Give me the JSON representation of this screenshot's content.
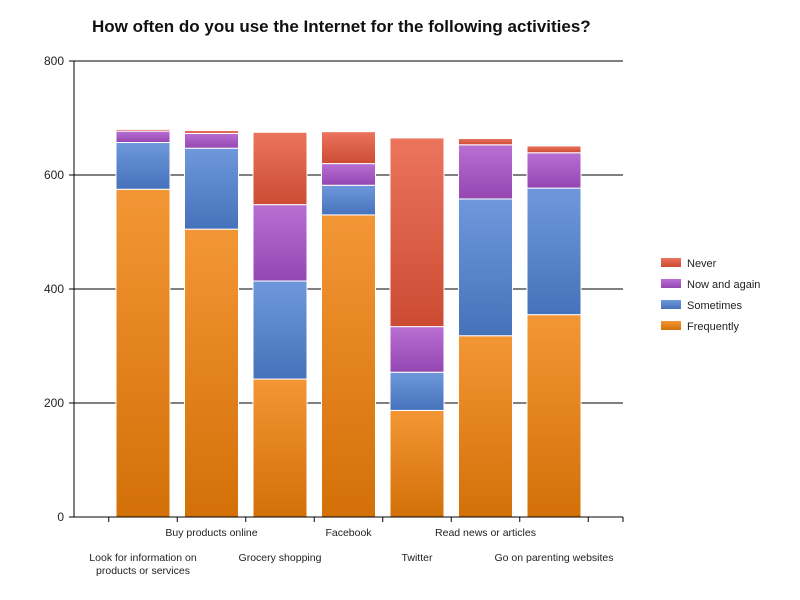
{
  "chart_data": {
    "type": "stacked-bar",
    "title": "How often do you use the Internet for the following activities?",
    "xlabel": "",
    "ylabel": "",
    "ylim": [
      0,
      800
    ],
    "yticks": [
      0,
      200,
      400,
      600,
      800
    ],
    "grid": true,
    "legend_position": "right",
    "categories": [
      "Look for information on products or services",
      "Buy products online",
      "Grocery shopping",
      "Facebook",
      "Twitter",
      "Read news or articles",
      "Go on parenting websites"
    ],
    "category_label_lines": [
      [
        "Look for information on",
        "products or services"
      ],
      [
        "Buy products online"
      ],
      [
        "Grocery shopping"
      ],
      [
        "Facebook"
      ],
      [
        "Twitter"
      ],
      [
        "Read news or articles"
      ],
      [
        "Go on parenting websites"
      ]
    ],
    "series": [
      {
        "name": "Frequently",
        "color": "#f07f09",
        "values": [
          575,
          505,
          242,
          530,
          187,
          318,
          355
        ]
      },
      {
        "name": "Sometimes",
        "color": "#4f81d4",
        "values": [
          82,
          142,
          172,
          52,
          67,
          240,
          222
        ]
      },
      {
        "name": "Now and again",
        "color": "#a84fc9",
        "values": [
          20,
          26,
          134,
          38,
          80,
          95,
          62
        ]
      },
      {
        "name": "Never",
        "color": "#e8553a",
        "values": [
          3,
          5,
          127,
          56,
          331,
          11,
          12
        ]
      }
    ],
    "legend_order": [
      "Never",
      "Now and again",
      "Sometimes",
      "Frequently"
    ]
  }
}
